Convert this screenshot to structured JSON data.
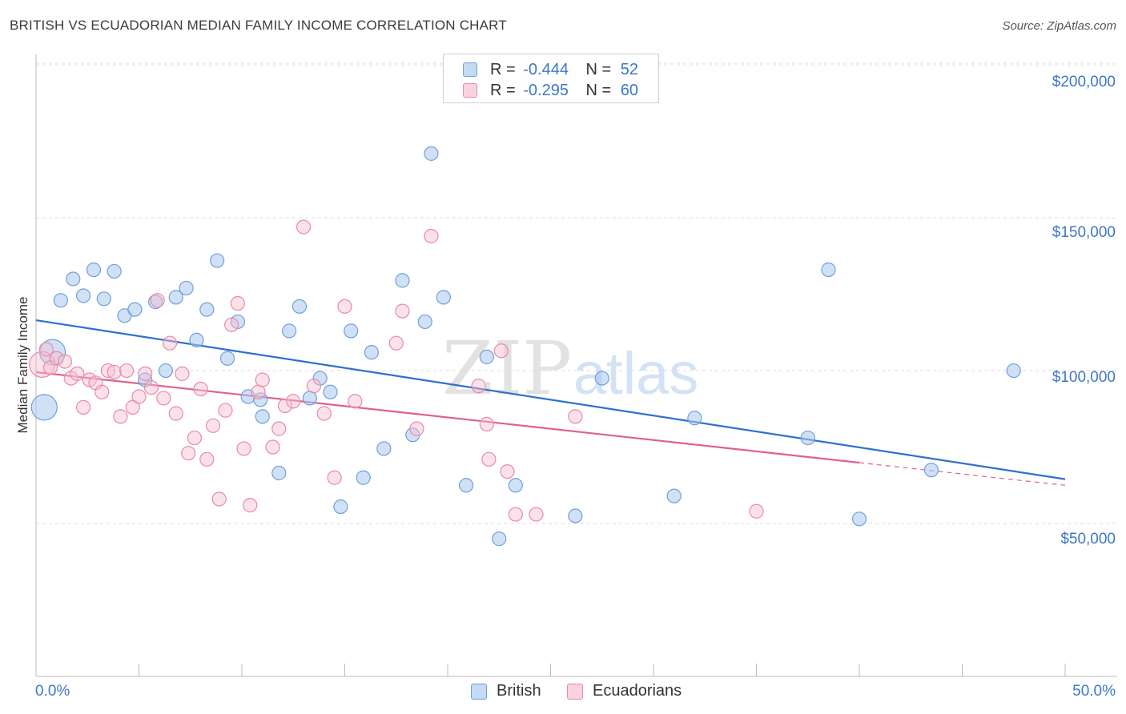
{
  "colors": {
    "british_fill": "#aac9ef",
    "british_stroke": "#6f9fdc",
    "british_line": "#2f6fd0",
    "ecuadorian_fill": "#f7bfd0",
    "ecuadorian_stroke": "#e88aa8",
    "ecuadorian_line": "#e06090",
    "axis_label": "#3d78c8",
    "grid": "#dddddd"
  },
  "chart_data": {
    "type": "scatter",
    "title": "BRITISH VS ECUADORIAN MEDIAN FAMILY INCOME CORRELATION CHART",
    "source": "Source: ZipAtlas.com",
    "ylabel": "Median Family Income",
    "xlim": [
      0,
      50
    ],
    "ylim": [
      0,
      205000
    ],
    "x_tick_labels": [
      "0.0%",
      "50.0%"
    ],
    "y_ticks": [
      {
        "value": 50000,
        "label": "$50,000"
      },
      {
        "value": 100000,
        "label": "$100,000"
      },
      {
        "value": 150000,
        "label": "$150,000"
      },
      {
        "value": 200000,
        "label": "$200,000"
      }
    ],
    "watermark": {
      "zip": "ZIP",
      "atlas": "atlas"
    },
    "legend": [
      {
        "r_label": "R =",
        "r_value": "-0.444",
        "n_label": "N =",
        "n_value": "52"
      },
      {
        "r_label": "R =",
        "r_value": "-0.295",
        "n_label": "N =",
        "n_value": "60"
      }
    ],
    "series": [
      {
        "name": "British",
        "trend": {
          "x0": 0,
          "y0": 116500,
          "x1": 50,
          "y1": 64500,
          "solid_until": 50
        },
        "points": [
          [
            0.8,
            106000,
            16
          ],
          [
            0.4,
            88000,
            16
          ],
          [
            1.2,
            123000,
            10
          ],
          [
            1.8,
            130000,
            10
          ],
          [
            2.3,
            124500,
            10
          ],
          [
            2.8,
            133000,
            10
          ],
          [
            3.3,
            123500,
            10
          ],
          [
            3.8,
            132500,
            10
          ],
          [
            4.3,
            118000,
            10
          ],
          [
            4.8,
            120000,
            10
          ],
          [
            5.3,
            97000,
            10
          ],
          [
            5.8,
            122500,
            10
          ],
          [
            6.3,
            100000,
            10
          ],
          [
            6.8,
            124000,
            10
          ],
          [
            7.3,
            127000,
            10
          ],
          [
            7.8,
            110000,
            10
          ],
          [
            8.3,
            120000,
            10
          ],
          [
            8.8,
            136000,
            10
          ],
          [
            9.3,
            104000,
            10
          ],
          [
            9.8,
            116000,
            10
          ],
          [
            10.3,
            91500,
            10
          ],
          [
            10.9,
            90500,
            10
          ],
          [
            11.0,
            85000,
            10
          ],
          [
            11.8,
            66500,
            10
          ],
          [
            12.3,
            113000,
            10
          ],
          [
            12.8,
            121000,
            10
          ],
          [
            13.3,
            91000,
            10
          ],
          [
            13.8,
            97500,
            10
          ],
          [
            14.3,
            93000,
            10
          ],
          [
            14.8,
            55500,
            10
          ],
          [
            15.3,
            113000,
            10
          ],
          [
            15.9,
            65000,
            10
          ],
          [
            16.3,
            106000,
            10
          ],
          [
            16.9,
            74500,
            10
          ],
          [
            17.8,
            129500,
            10
          ],
          [
            18.3,
            79000,
            10
          ],
          [
            18.9,
            116000,
            10
          ],
          [
            19.2,
            171000,
            10
          ],
          [
            19.8,
            124000,
            10
          ],
          [
            20.9,
            62500,
            10
          ],
          [
            21.9,
            104500,
            10
          ],
          [
            22.5,
            45000,
            10
          ],
          [
            23.3,
            62500,
            10
          ],
          [
            26.2,
            52500,
            10
          ],
          [
            27.5,
            97500,
            10
          ],
          [
            31.0,
            59000,
            10
          ],
          [
            32.0,
            84500,
            10
          ],
          [
            37.5,
            78000,
            10
          ],
          [
            38.5,
            133000,
            10
          ],
          [
            40.0,
            51500,
            10
          ],
          [
            43.5,
            67500,
            10
          ],
          [
            47.5,
            100000,
            10
          ]
        ]
      },
      {
        "name": "Ecuadorians",
        "trend": {
          "x0": 0,
          "y0": 99500,
          "x1": 50,
          "y1": 62500,
          "solid_until": 40
        },
        "points": [
          [
            0.3,
            102000,
            16
          ],
          [
            0.5,
            107000,
            10
          ],
          [
            0.7,
            101000,
            10
          ],
          [
            1.0,
            104000,
            10
          ],
          [
            1.4,
            103000,
            10
          ],
          [
            1.7,
            97500,
            10
          ],
          [
            2.0,
            99000,
            10
          ],
          [
            2.3,
            88000,
            10
          ],
          [
            2.6,
            97000,
            10
          ],
          [
            2.9,
            96000,
            10
          ],
          [
            3.2,
            93000,
            10
          ],
          [
            3.5,
            100000,
            10
          ],
          [
            3.8,
            99500,
            10
          ],
          [
            4.1,
            85000,
            10
          ],
          [
            4.4,
            100000,
            10
          ],
          [
            4.7,
            88000,
            10
          ],
          [
            5.0,
            91500,
            10
          ],
          [
            5.3,
            99000,
            10
          ],
          [
            5.6,
            94500,
            10
          ],
          [
            5.9,
            123000,
            10
          ],
          [
            6.2,
            91000,
            10
          ],
          [
            6.5,
            109000,
            10
          ],
          [
            6.8,
            86000,
            10
          ],
          [
            7.1,
            99000,
            10
          ],
          [
            7.4,
            73000,
            10
          ],
          [
            7.7,
            78000,
            10
          ],
          [
            8.0,
            94000,
            10
          ],
          [
            8.3,
            71000,
            10
          ],
          [
            8.6,
            82000,
            10
          ],
          [
            8.9,
            58000,
            10
          ],
          [
            9.2,
            87000,
            10
          ],
          [
            9.5,
            115000,
            10
          ],
          [
            9.8,
            122000,
            10
          ],
          [
            10.1,
            74500,
            10
          ],
          [
            10.4,
            56000,
            10
          ],
          [
            10.8,
            93000,
            10
          ],
          [
            11.0,
            97000,
            10
          ],
          [
            11.5,
            75000,
            10
          ],
          [
            11.8,
            81000,
            10
          ],
          [
            12.1,
            88500,
            10
          ],
          [
            12.5,
            90000,
            10
          ],
          [
            13.0,
            147000,
            10
          ],
          [
            13.5,
            95000,
            10
          ],
          [
            14.0,
            86000,
            10
          ],
          [
            14.5,
            65000,
            10
          ],
          [
            15.0,
            121000,
            10
          ],
          [
            15.5,
            90000,
            10
          ],
          [
            17.5,
            109000,
            10
          ],
          [
            17.8,
            119500,
            10
          ],
          [
            18.5,
            81000,
            10
          ],
          [
            19.2,
            144000,
            10
          ],
          [
            21.5,
            95000,
            10
          ],
          [
            22.0,
            71000,
            10
          ],
          [
            22.6,
            106500,
            10
          ],
          [
            22.9,
            67000,
            10
          ],
          [
            23.3,
            53000,
            10
          ],
          [
            24.3,
            53000,
            10
          ],
          [
            26.2,
            85000,
            10
          ],
          [
            35.0,
            54000,
            10
          ],
          [
            21.9,
            82500,
            10
          ]
        ]
      }
    ]
  }
}
